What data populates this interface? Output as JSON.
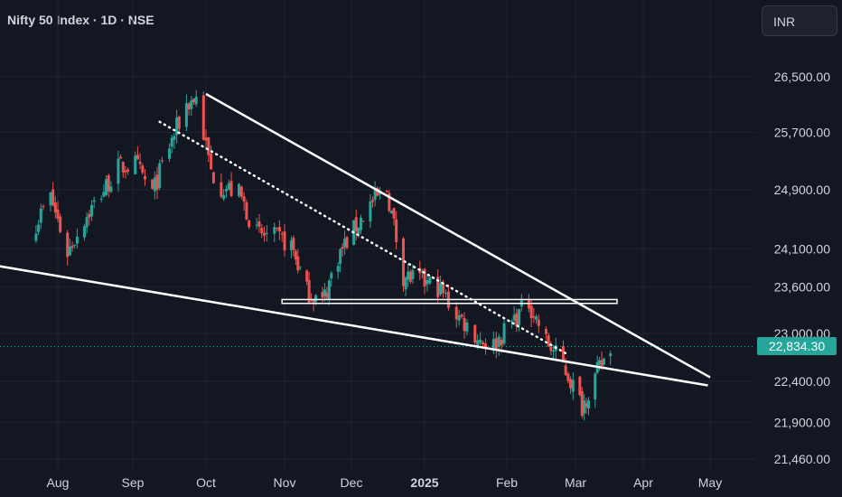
{
  "header": {
    "title": "Nifty 50 Index · 1D · NSE",
    "currency": "INR"
  },
  "last_price_label": "22,834.30",
  "colors": {
    "background": "#131722",
    "up": "#26a69a",
    "down": "#ef5350",
    "lines": "#ffffff",
    "text": "#d1d4dc"
  },
  "chart_data": {
    "type": "candlestick",
    "title": "Nifty 50 Index · 1D · NSE",
    "x_ticks": [
      "Aug",
      "Sep",
      "Oct",
      "Nov",
      "Dec",
      "2025",
      "Feb",
      "Mar",
      "Apr",
      "May"
    ],
    "y_ticks": [
      "26,500.00",
      "25,700.00",
      "24,900.00",
      "24,100.00",
      "23,600.00",
      "23,000.00",
      "22,400.00",
      "21,900.00",
      "21,460.00"
    ],
    "y_tick_values": [
      26500,
      25700,
      24900,
      24100,
      23600,
      23000,
      22400,
      21900,
      21460
    ],
    "y_scale": "log",
    "ylim": [
      21300,
      27000
    ],
    "last_price": 22834.3,
    "close_series_approx": {
      "dates": [
        "2024-07-23",
        "2024-07-29",
        "2024-08-05",
        "2024-08-12",
        "2024-08-19",
        "2024-08-26",
        "2024-09-02",
        "2024-09-09",
        "2024-09-16",
        "2024-09-23",
        "2024-09-27",
        "2024-10-03",
        "2024-10-07",
        "2024-10-14",
        "2024-10-21",
        "2024-10-28",
        "2024-11-04",
        "2024-11-11",
        "2024-11-18",
        "2024-11-25",
        "2024-12-02",
        "2024-12-09",
        "2024-12-16",
        "2024-12-23",
        "2025-01-06",
        "2025-01-13",
        "2025-01-21",
        "2025-01-27",
        "2025-02-03",
        "2025-02-10",
        "2025-02-17",
        "2025-02-24",
        "2025-03-04",
        "2025-03-10",
        "2025-03-17"
      ],
      "values": [
        24450,
        24800,
        24050,
        24500,
        24850,
        25200,
        25250,
        24850,
        25500,
        26100,
        26200,
        25150,
        24950,
        24850,
        24300,
        24250,
        24150,
        23550,
        23400,
        24000,
        24350,
        24700,
        24900,
        23750,
        23600,
        23250,
        22950,
        22850,
        23150,
        23400,
        22900,
        22600,
        22100,
        22450,
        22834.3
      ]
    }
  },
  "annotations": [
    {
      "kind": "trendline",
      "style": "solid",
      "from": {
        "date": "2024-10-01",
        "price": 26250
      },
      "to": {
        "date": "2025-05-01",
        "price": 22450
      }
    },
    {
      "kind": "trendline",
      "style": "solid",
      "from": {
        "date": "2024-06-10",
        "price": 24020
      },
      "to": {
        "date": "2025-04-30",
        "price": 22350
      }
    },
    {
      "kind": "trendline",
      "style": "dotted",
      "from": {
        "date": "2024-09-12",
        "price": 25850
      },
      "to": {
        "date": "2025-02-25",
        "price": 22750
      }
    },
    {
      "kind": "rectangle",
      "from": {
        "date": "2024-10-31",
        "price": 23385
      },
      "to": {
        "date": "2025-03-20",
        "price": 23435
      }
    }
  ]
}
